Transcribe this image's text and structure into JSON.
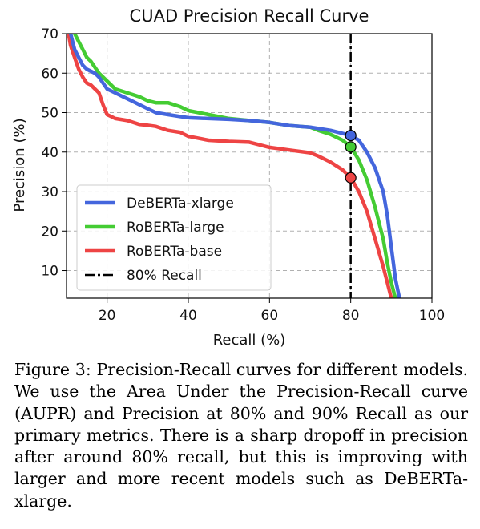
{
  "chart_data": {
    "type": "line",
    "title": "CUAD Precision Recall Curve",
    "xlabel": "Recall (%)",
    "ylabel": "Precision (%)",
    "xlim": [
      10,
      100
    ],
    "ylim": [
      3,
      70
    ],
    "xticks": [
      20,
      40,
      60,
      80,
      100
    ],
    "yticks": [
      10,
      20,
      30,
      40,
      50,
      60,
      70
    ],
    "grid": true,
    "legend_position": "lower-left",
    "series": [
      {
        "name": "DeBERTa-xlarge",
        "color": "#4466dd",
        "x": [
          11,
          12,
          13,
          14,
          15,
          17,
          18,
          20,
          22,
          24,
          26,
          28,
          30,
          32,
          35,
          38,
          40,
          45,
          50,
          55,
          60,
          65,
          70,
          75,
          80,
          82,
          84,
          86,
          88,
          89,
          90,
          91,
          92
        ],
        "y": [
          70,
          66,
          64,
          62,
          61,
          60,
          59,
          56,
          55,
          54,
          53,
          52,
          51,
          50,
          49.5,
          49,
          48.7,
          48.5,
          48.3,
          48,
          47.5,
          46.7,
          46.3,
          45.5,
          44.2,
          43,
          40,
          36,
          30,
          24,
          16,
          8,
          3
        ]
      },
      {
        "name": "RoBERTa-large",
        "color": "#44cc33",
        "x": [
          12,
          13,
          14,
          15,
          16,
          18,
          20,
          22,
          25,
          28,
          30,
          32,
          35,
          38,
          40,
          45,
          50,
          55,
          60,
          65,
          70,
          72,
          75,
          78,
          80,
          82,
          84,
          86,
          88,
          89,
          90,
          91
        ],
        "y": [
          70,
          68,
          66,
          64,
          63,
          60,
          58,
          56,
          55,
          54,
          53,
          52.5,
          52.5,
          51.5,
          50.5,
          49.5,
          48.5,
          48,
          47.5,
          46.7,
          46.3,
          45.5,
          44.5,
          43,
          41.3,
          38,
          33,
          26,
          18,
          12,
          7,
          3
        ]
      },
      {
        "name": "RoBERTa-base",
        "color": "#ee4444",
        "x": [
          10.5,
          11,
          12,
          13,
          14,
          15,
          16,
          17,
          18,
          19,
          20,
          21,
          22,
          25,
          28,
          30,
          32,
          35,
          38,
          40,
          45,
          50,
          55,
          60,
          65,
          70,
          72,
          75,
          78,
          80,
          82,
          84,
          86,
          88,
          89,
          90
        ],
        "y": [
          70,
          67,
          64,
          61,
          59,
          57.5,
          57,
          56,
          55,
          52,
          49.5,
          49,
          48.5,
          48,
          47,
          46.8,
          46.5,
          45.5,
          45,
          44,
          43,
          42.7,
          42.5,
          41.2,
          40.5,
          39.8,
          39,
          37.5,
          35.5,
          33.5,
          30,
          25,
          18,
          11,
          7,
          3
        ]
      }
    ],
    "reference_line": {
      "name": "80% Recall",
      "x": 80,
      "color": "#000000"
    },
    "markers": [
      {
        "series": "DeBERTa-xlarge",
        "x": 80,
        "y": 44.2,
        "color": "#4466dd"
      },
      {
        "series": "RoBERTa-large",
        "x": 80,
        "y": 41.3,
        "color": "#44cc33"
      },
      {
        "series": "RoBERTa-base",
        "x": 80,
        "y": 33.5,
        "color": "#ee4444"
      }
    ]
  },
  "caption": "Figure 3: Precision-Recall curves for different models. We use the Area Under the Precision-Recall curve (AUPR) and Precision at 80% and 90% Recall as our primary metrics. There is a sharp dropoff in precision after around 80% recall, but this is improving with larger and more recent models such as DeBERTa-xlarge."
}
